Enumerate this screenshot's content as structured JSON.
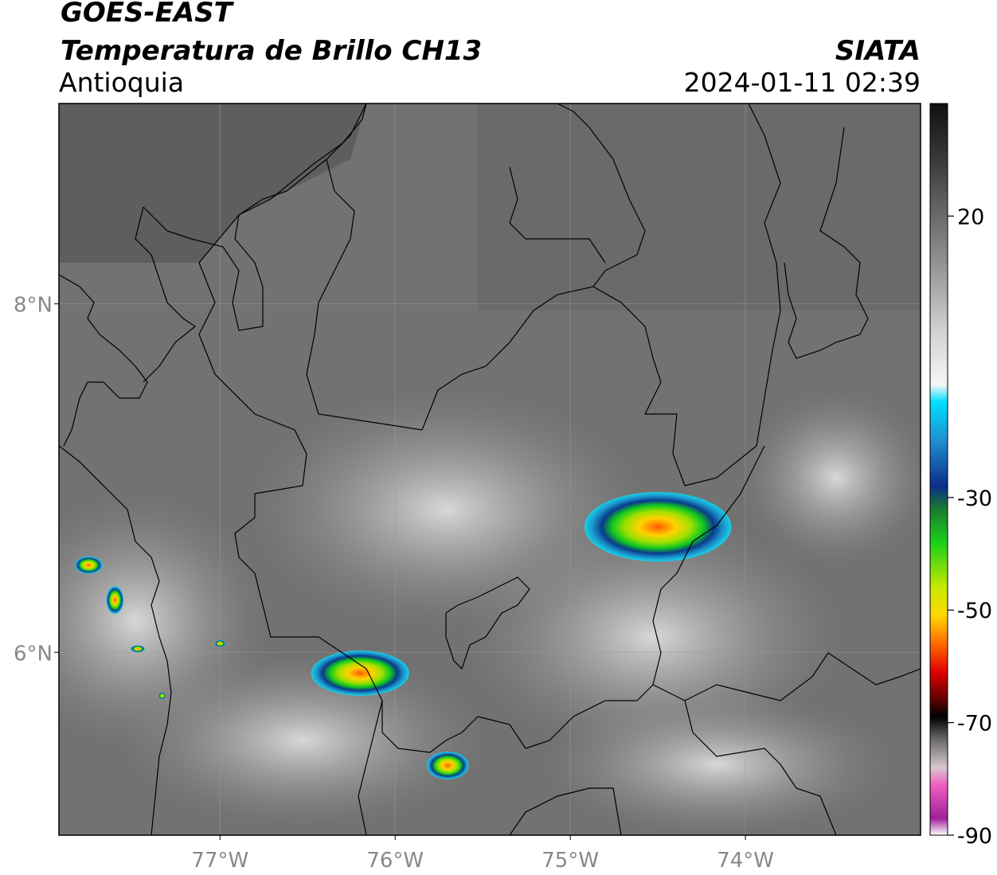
{
  "header": {
    "satellite": "GOES-EAST",
    "product": "Temperatura de Brillo CH13",
    "region": "Antioquia",
    "organization": "SIATA",
    "datetime": "2024-01-11 02:39"
  },
  "map": {
    "lon_range": [
      -77.92,
      -73.0
    ],
    "lat_range": [
      4.95,
      9.15
    ],
    "graticule_lons": [
      -77,
      -76,
      -75,
      -74
    ],
    "graticule_lats": [
      8,
      6
    ],
    "lon_labels": [
      "77°W",
      "76°W",
      "75°W",
      "74°W"
    ],
    "lat_labels": [
      "8°N",
      "6°N"
    ],
    "colors": {
      "background_gray": "#6e6e6e",
      "border_line": "#000000",
      "graticule": "#9a9a9a"
    },
    "storm_cells": [
      {
        "lon": -74.5,
        "lat": 6.72,
        "rx": 0.42,
        "ry": 0.2
      },
      {
        "lon": -76.2,
        "lat": 5.88,
        "rx": 0.28,
        "ry": 0.13
      },
      {
        "lon": -75.7,
        "lat": 5.35,
        "rx": 0.12,
        "ry": 0.08
      },
      {
        "lon": -77.75,
        "lat": 6.5,
        "rx": 0.08,
        "ry": 0.05
      },
      {
        "lon": -77.6,
        "lat": 6.3,
        "rx": 0.05,
        "ry": 0.08
      },
      {
        "lon": -77.47,
        "lat": 6.02,
        "rx": 0.04,
        "ry": 0.02
      },
      {
        "lon": -77.0,
        "lat": 6.05,
        "rx": 0.03,
        "ry": 0.02
      },
      {
        "lon": -77.33,
        "lat": 5.75,
        "rx": 0.02,
        "ry": 0.02
      }
    ]
  },
  "colorbar": {
    "ticks": [
      {
        "value": 20,
        "label": "20"
      },
      {
        "value": -30,
        "label": "-30"
      },
      {
        "value": -50,
        "label": "-50"
      },
      {
        "value": -70,
        "label": "-70"
      },
      {
        "value": -90,
        "label": "-90"
      }
    ],
    "stops": [
      {
        "value": 40,
        "color": "#101010"
      },
      {
        "value": 30,
        "color": "#3a3a3a"
      },
      {
        "value": 20,
        "color": "#6a6a6a"
      },
      {
        "value": 10,
        "color": "#9a9a9a"
      },
      {
        "value": 0,
        "color": "#d0d0d0"
      },
      {
        "value": -10,
        "color": "#f6f6f6"
      },
      {
        "value": -13,
        "color": "#00e0ff"
      },
      {
        "value": -20,
        "color": "#1f8ed0"
      },
      {
        "value": -28,
        "color": "#0a2e8a"
      },
      {
        "value": -32,
        "color": "#1a7a30"
      },
      {
        "value": -38,
        "color": "#1ad01a"
      },
      {
        "value": -46,
        "color": "#c8e800"
      },
      {
        "value": -51,
        "color": "#ffd800"
      },
      {
        "value": -56,
        "color": "#ff6a00"
      },
      {
        "value": -61,
        "color": "#e00000"
      },
      {
        "value": -66,
        "color": "#5a0000"
      },
      {
        "value": -69,
        "color": "#000000"
      },
      {
        "value": -73,
        "color": "#6a6a6a"
      },
      {
        "value": -78,
        "color": "#d8c8d0"
      },
      {
        "value": -81,
        "color": "#f060c0"
      },
      {
        "value": -87,
        "color": "#a0209a"
      },
      {
        "value": -90,
        "color": "#ffffff"
      }
    ]
  }
}
